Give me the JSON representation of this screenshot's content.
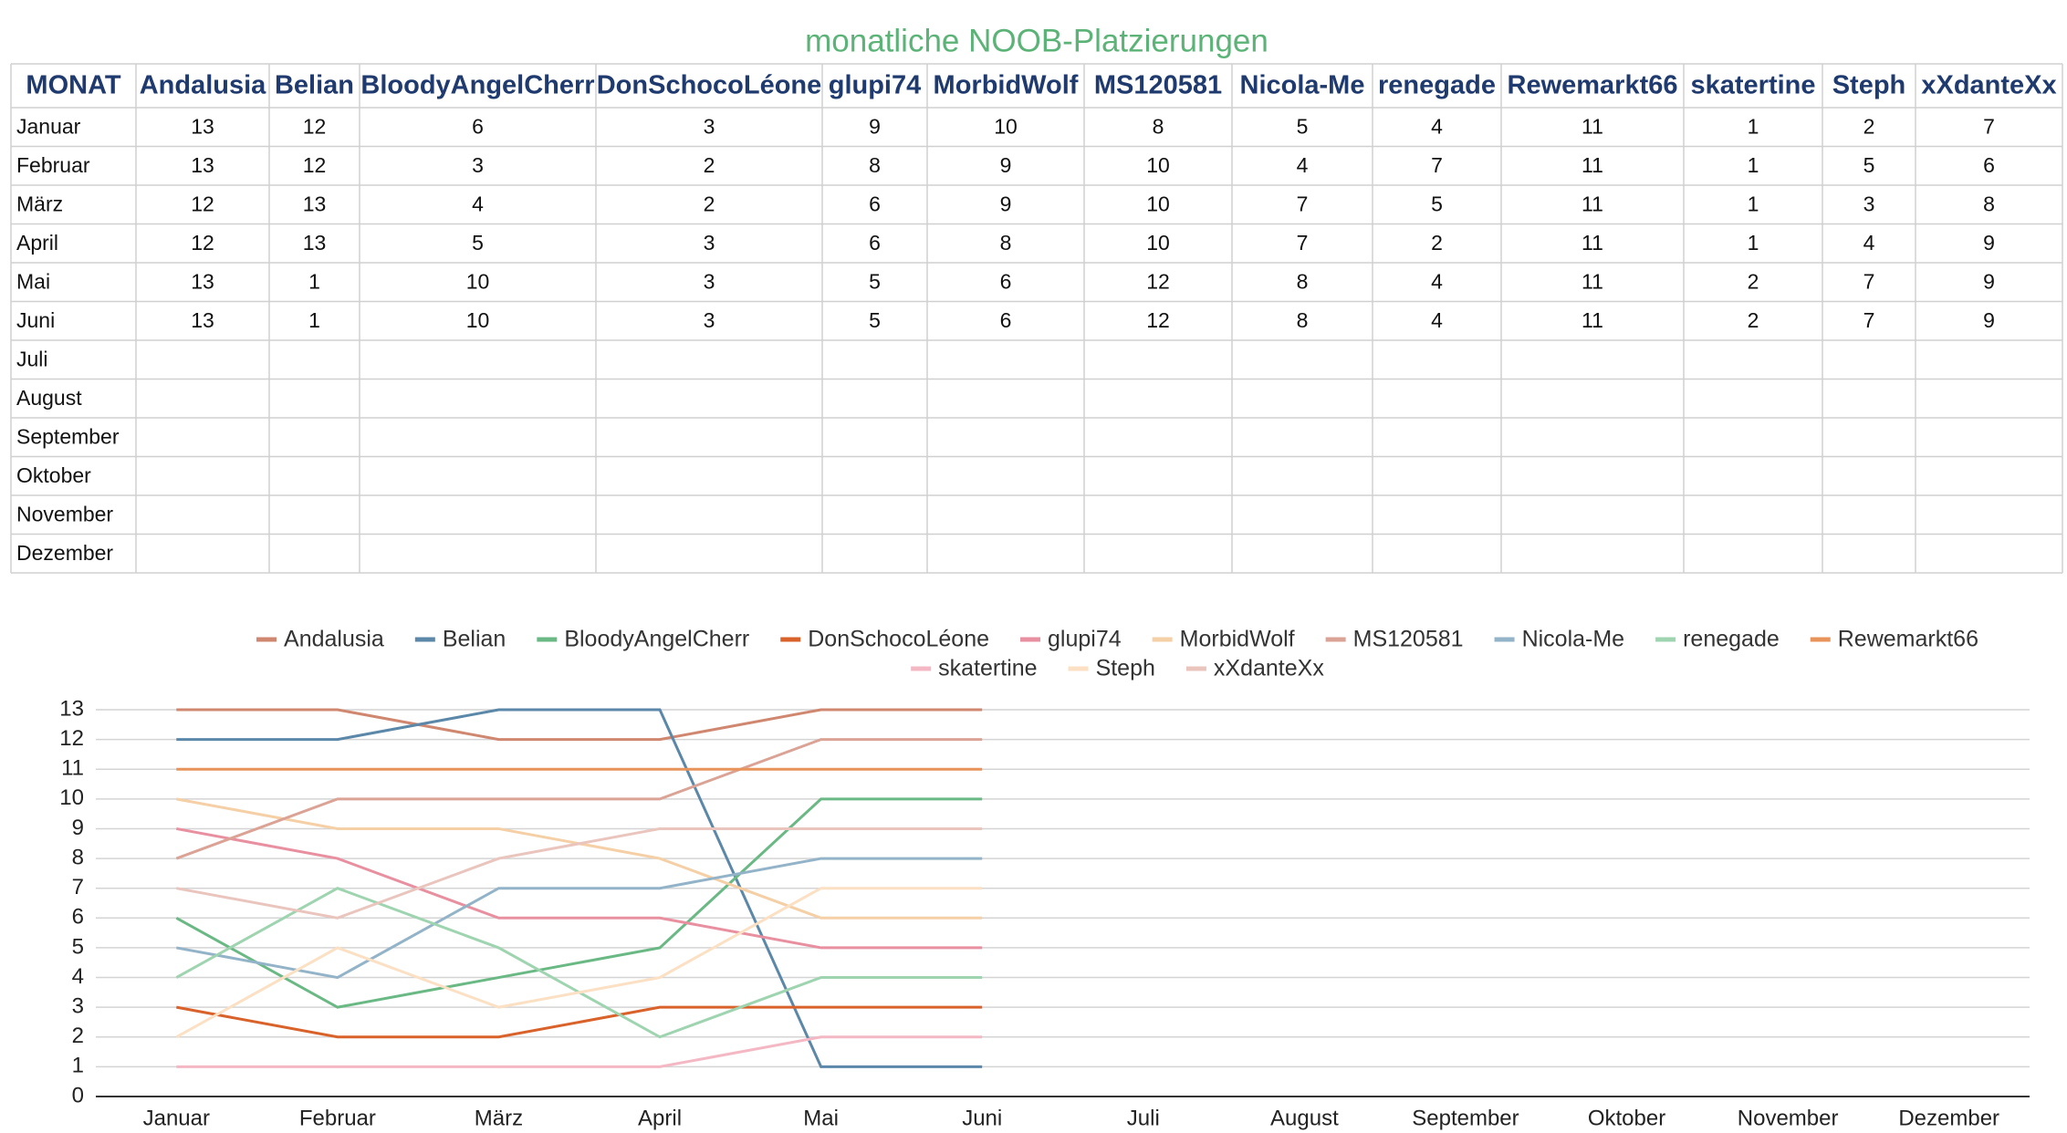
{
  "table": {
    "title": "monatliche NOOB-Platzierungen",
    "header": [
      "MONAT",
      "Andalusia",
      "Belian",
      "BloodyAngelCherr",
      "DonSchocoLéone",
      "glupi74",
      "MorbidWolf",
      "MS120581",
      "Nicola-Me",
      "renegade",
      "Rewemarkt66",
      "skatertine",
      "Steph",
      "xXdanteXx"
    ],
    "months": [
      "Januar",
      "Februar",
      "März",
      "April",
      "Mai",
      "Juni",
      "Juli",
      "August",
      "September",
      "Oktober",
      "November",
      "Dezember"
    ],
    "rows": [
      [
        13,
        12,
        6,
        3,
        9,
        10,
        8,
        5,
        4,
        11,
        1,
        2,
        7
      ],
      [
        13,
        12,
        3,
        2,
        8,
        9,
        10,
        4,
        7,
        11,
        1,
        5,
        6
      ],
      [
        12,
        13,
        4,
        2,
        6,
        9,
        10,
        7,
        5,
        11,
        1,
        3,
        8
      ],
      [
        12,
        13,
        5,
        3,
        6,
        8,
        10,
        7,
        2,
        11,
        1,
        4,
        9
      ],
      [
        13,
        1,
        10,
        3,
        5,
        6,
        12,
        8,
        4,
        11,
        2,
        7,
        9
      ],
      [
        13,
        1,
        10,
        3,
        5,
        6,
        12,
        8,
        4,
        11,
        2,
        7,
        9
      ]
    ]
  },
  "chart_data": {
    "type": "line",
    "categories": [
      "Januar",
      "Februar",
      "März",
      "April",
      "Mai",
      "Juni",
      "Juli",
      "August",
      "September",
      "Oktober",
      "November",
      "Dezember"
    ],
    "series": [
      {
        "name": "Andalusia",
        "color": "#d08770",
        "values": [
          13,
          13,
          12,
          12,
          13,
          13,
          null,
          null,
          null,
          null,
          null,
          null
        ]
      },
      {
        "name": "Belian",
        "color": "#5b87a8",
        "values": [
          12,
          12,
          13,
          13,
          1,
          1,
          null,
          null,
          null,
          null,
          null,
          null
        ]
      },
      {
        "name": "BloodyAngelCherr",
        "color": "#6ab985",
        "values": [
          6,
          3,
          4,
          5,
          10,
          10,
          null,
          null,
          null,
          null,
          null,
          null
        ]
      },
      {
        "name": "DonSchocoLéone",
        "color": "#d9622b",
        "values": [
          3,
          2,
          2,
          3,
          3,
          3,
          null,
          null,
          null,
          null,
          null,
          null
        ]
      },
      {
        "name": "glupi74",
        "color": "#e88fa0",
        "values": [
          9,
          8,
          6,
          6,
          5,
          5,
          null,
          null,
          null,
          null,
          null,
          null
        ]
      },
      {
        "name": "MorbidWolf",
        "color": "#f5cfa5",
        "values": [
          10,
          9,
          9,
          8,
          6,
          6,
          null,
          null,
          null,
          null,
          null,
          null
        ]
      },
      {
        "name": "MS120581",
        "color": "#dba396",
        "values": [
          8,
          10,
          10,
          10,
          12,
          12,
          null,
          null,
          null,
          null,
          null,
          null
        ]
      },
      {
        "name": "Nicola-Me",
        "color": "#93b3c8",
        "values": [
          5,
          4,
          7,
          7,
          8,
          8,
          null,
          null,
          null,
          null,
          null,
          null
        ]
      },
      {
        "name": "renegade",
        "color": "#9fd4b0",
        "values": [
          4,
          7,
          5,
          2,
          4,
          4,
          null,
          null,
          null,
          null,
          null,
          null
        ]
      },
      {
        "name": "Rewemarkt66",
        "color": "#e8935a",
        "values": [
          11,
          11,
          11,
          11,
          11,
          11,
          null,
          null,
          null,
          null,
          null,
          null
        ]
      },
      {
        "name": "skatertine",
        "color": "#f4b8c4",
        "values": [
          1,
          1,
          1,
          1,
          2,
          2,
          null,
          null,
          null,
          null,
          null,
          null
        ]
      },
      {
        "name": "Steph",
        "color": "#fbe0c4",
        "values": [
          2,
          5,
          3,
          4,
          7,
          7,
          null,
          null,
          null,
          null,
          null,
          null
        ]
      },
      {
        "name": "xXdanteXx",
        "color": "#e9c5bd",
        "values": [
          7,
          6,
          8,
          9,
          9,
          9,
          null,
          null,
          null,
          null,
          null,
          null
        ]
      }
    ],
    "ylim": [
      0,
      13
    ],
    "yticks": [
      0,
      1,
      2,
      3,
      4,
      5,
      6,
      7,
      8,
      9,
      10,
      11,
      12,
      13
    ],
    "grid": true,
    "legend": "top"
  }
}
